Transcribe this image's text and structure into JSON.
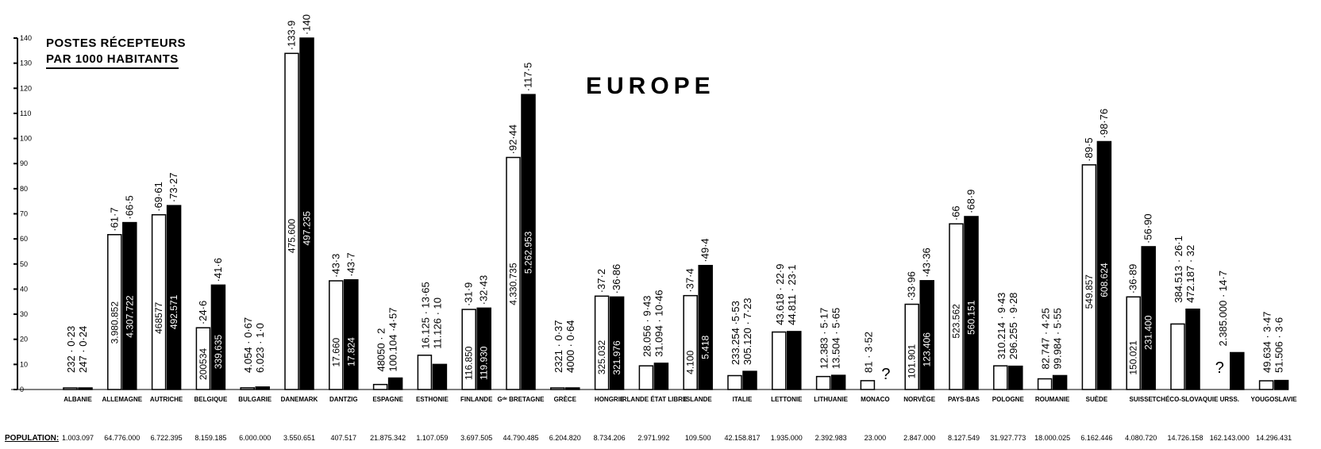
{
  "legend": {
    "line1": "POSTES RÉCEPTEURS",
    "line2": "PAR 1000 HABITANTS"
  },
  "title": "EUROPE",
  "population_label": "POPULATION:",
  "colors": {
    "bar_a": "#ffffff",
    "bar_b": "#000000",
    "ink": "#000000"
  },
  "chart_data": {
    "type": "bar",
    "title": "EUROPE",
    "ylabel": "POSTES RÉCEPTEURS PAR 1000 HABITANTS",
    "ylim": [
      0,
      140
    ],
    "yticks": [
      0,
      10,
      20,
      30,
      40,
      50,
      60,
      70,
      80,
      90,
      100,
      110,
      120,
      130,
      140
    ],
    "grid": false,
    "categories": [
      "ALBANIE",
      "ALLEMAGNE",
      "AUTRICHE",
      "BELGIQUE",
      "BULGARIE",
      "DANEMARK",
      "DANTZIG",
      "ESPAGNE",
      "ESTHONIE",
      "FINLANDE",
      "Gᵈᵉ BRETAGNE",
      "GRÈCE",
      "HONGRIE",
      "IRLANDE ÉTAT LIBRE",
      "ISLANDE",
      "ITALIE",
      "LETTONIE",
      "LITHUANIE",
      "MONACO",
      "NORVÈGE",
      "PAYS-BAS",
      "POLOGNE",
      "ROUMANIE",
      "SUÈDE",
      "SUISSE",
      "TCHÉCO-SLOVAQUIE",
      "URSS.",
      "YOUGOSLAVIE"
    ],
    "population": [
      "1.003.097",
      "64.776.000",
      "6.722.395",
      "8.159.185",
      "6.000.000",
      "3.550.651",
      "407.517",
      "21.875.342",
      "1.107.059",
      "3.697.505",
      "44.790.485",
      "6.204.820",
      "8.734.206",
      "2.971.992",
      "109.500",
      "42.158.817",
      "1.935.000",
      "2.392.983",
      "23.000",
      "2.847.000",
      "8.127.549",
      "31.927.773",
      "18.000.025",
      "6.162.446",
      "4.080.720",
      "14.726.158",
      "162.143.000",
      "14.296.431"
    ],
    "series": [
      {
        "values": [
          0.23,
          61.7,
          69.61,
          24.6,
          0.67,
          133.9,
          43.3,
          2,
          13.65,
          31.9,
          92.44,
          0.37,
          37.2,
          9.43,
          37.4,
          5.53,
          22.9,
          5.17,
          3.52,
          33.96,
          66,
          9.43,
          4.25,
          89.5,
          36.89,
          26.1,
          null,
          3.47
        ]
      },
      {
        "values": [
          0.24,
          66.5,
          73.27,
          41.6,
          1.0,
          140,
          43.7,
          4.57,
          10,
          32.43,
          117.5,
          0.64,
          36.86,
          10.46,
          49.4,
          7.23,
          23.1,
          5.65,
          null,
          43.36,
          68.9,
          9.28,
          5.55,
          98.76,
          56.9,
          32,
          14.7,
          3.6
        ]
      }
    ],
    "annotations": [
      {
        "a": "232 · 0·23",
        "b": "247 · 0·24",
        "mode": "text"
      },
      {
        "a": "·61·7",
        "b": "·66·5",
        "ia": "3.980.852",
        "ib": "4.307.722",
        "mode": "top"
      },
      {
        "a": "·69·61",
        "b": "·73·27",
        "ia": "468577",
        "ib": "492.571",
        "mode": "top"
      },
      {
        "a": "·24·6",
        "b": "·41·6",
        "ia": "200534",
        "ib": "339.635",
        "mode": "top"
      },
      {
        "a": "4.054 · 0·67",
        "b": "6.023 · 1·0",
        "mode": "text"
      },
      {
        "a": "·133·9",
        "b": "·140",
        "ia": "475.600",
        "ib": "497.235",
        "mode": "top"
      },
      {
        "a": "·43·3",
        "b": "·43·7",
        "ia": "17.660",
        "ib": "17.824",
        "mode": "top"
      },
      {
        "a": "48050 · 2",
        "b": "100.104 ·4·57",
        "mode": "text"
      },
      {
        "a": "16.125 · 13·65",
        "b": "11.126 · 10",
        "mode": "text"
      },
      {
        "a": "·31·9",
        "b": "·32·43",
        "ia": "116.850",
        "ib": "119.930",
        "mode": "top"
      },
      {
        "a": "·92·44",
        "b": "·117·5",
        "ia": "4.330.735",
        "ib": "5.262.953",
        "mode": "top"
      },
      {
        "a": "2321 · 0·37",
        "b": "4000 · 0·64",
        "mode": "text"
      },
      {
        "a": "·37·2",
        "b": "·36·86",
        "ia": "325.032",
        "ib": "321.976",
        "mode": "top"
      },
      {
        "a": "28.056 · 9·43",
        "b": "31.094 · 10·46",
        "mode": "text"
      },
      {
        "a": "·37·4",
        "b": "·49·4",
        "ia": "4.100",
        "ib": "5.418",
        "mode": "top"
      },
      {
        "a": "233.254 ·5·53",
        "b": "305.120 · 7·23",
        "mode": "text"
      },
      {
        "a": "43.618 · 22·9",
        "b": "44.811 · 23·1",
        "mode": "text"
      },
      {
        "a": "12.383 · 5·17",
        "b": "13.504 · 5·65",
        "mode": "text"
      },
      {
        "a": "81 · 3·52",
        "b": "",
        "mode": "text"
      },
      {
        "a": "·33·96",
        "b": "·43·36",
        "ia": "101.901",
        "ib": "123.406",
        "mode": "top"
      },
      {
        "a": "·66",
        "b": "·68·9",
        "ia": "523.562",
        "ib": "560.151",
        "mode": "top"
      },
      {
        "a": "310.214 · 9·43",
        "b": "296.255 · 9·28",
        "mode": "text"
      },
      {
        "a": "82.747 · 4·25",
        "b": "99.984 · 5·55",
        "mode": "text"
      },
      {
        "a": "·89·5",
        "b": "·98·76",
        "ia": "549.857",
        "ib": "608.624",
        "mode": "top"
      },
      {
        "a": "·36·89",
        "b": "·56·90",
        "ia": "150.021",
        "ib": "231.400",
        "mode": "top"
      },
      {
        "a": "384.513 · 26·1",
        "b": "472.187 · 32",
        "mode": "text"
      },
      {
        "a": "2.385.000 · 14·7",
        "b": "",
        "mode": "text"
      },
      {
        "a": "49.634 · 3·47",
        "b": "51.506 · 3·6",
        "mode": "text"
      }
    ],
    "unknown_marks": [
      "?",
      "?"
    ]
  }
}
